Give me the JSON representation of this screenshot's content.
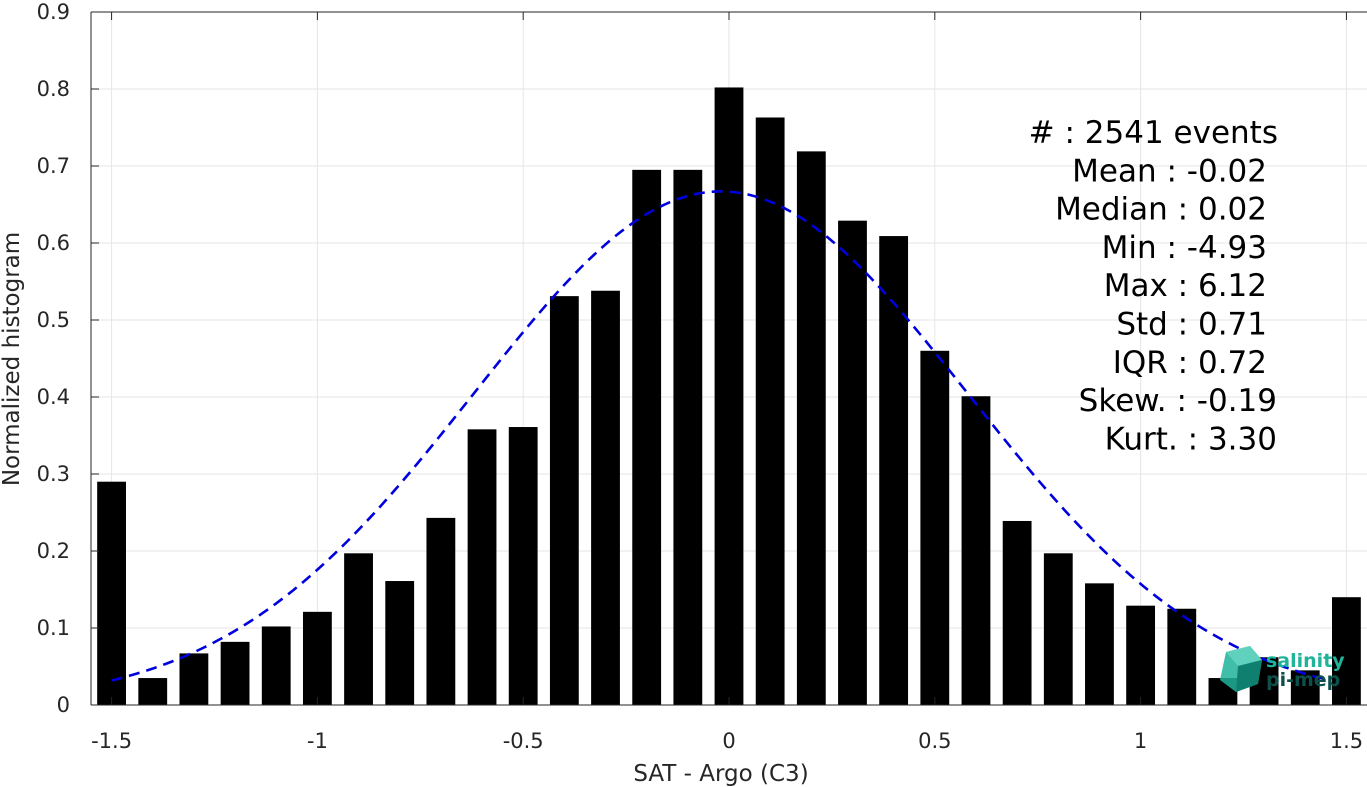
{
  "colors": {
    "bar": "#000000",
    "fit_line": "#0000dd",
    "grid": "#e6e6e6",
    "axis": "#262626",
    "logo_primary": "#1fb39a",
    "logo_dark": "#0d4f4a"
  },
  "logo": {
    "line1": "salinity",
    "line2": "pi-mep",
    "icon": "cube-logo-icon"
  },
  "chart_data": {
    "type": "bar",
    "title": "",
    "xlabel": "SAT - Argo (C3)",
    "ylabel": "Normalized histogram",
    "xlim": [
      -1.55,
      1.55
    ],
    "ylim": [
      0,
      0.9
    ],
    "xticks": [
      -1.5,
      -1,
      -0.5,
      0,
      0.5,
      1,
      1.5
    ],
    "xtick_labels": [
      "-1.5",
      "-1",
      "-0.5",
      "0",
      "0.5",
      "1",
      "1.5"
    ],
    "yticks": [
      0,
      0.1,
      0.2,
      0.3,
      0.4,
      0.5,
      0.6,
      0.7,
      0.8,
      0.9
    ],
    "ytick_labels": [
      "0",
      "0.1",
      "0.2",
      "0.3",
      "0.4",
      "0.5",
      "0.6",
      "0.7",
      "0.8",
      "0.9"
    ],
    "grid": true,
    "bar_width": 0.07,
    "x": [
      -1.5,
      -1.4,
      -1.3,
      -1.2,
      -1.1,
      -1.0,
      -0.9,
      -0.8,
      -0.7,
      -0.6,
      -0.5,
      -0.4,
      -0.3,
      -0.2,
      -0.1,
      0.0,
      0.1,
      0.2,
      0.3,
      0.4,
      0.5,
      0.6,
      0.7,
      0.8,
      0.9,
      1.0,
      1.1,
      1.2,
      1.3,
      1.4,
      1.5
    ],
    "values": [
      0.29,
      0.035,
      0.067,
      0.082,
      0.102,
      0.121,
      0.197,
      0.161,
      0.243,
      0.358,
      0.361,
      0.531,
      0.538,
      0.695,
      0.695,
      0.802,
      0.763,
      0.719,
      0.629,
      0.609,
      0.46,
      0.401,
      0.239,
      0.197,
      0.158,
      0.129,
      0.125,
      0.035,
      0.062,
      0.045,
      0.14
    ],
    "fit": {
      "name": "",
      "style": "dashed",
      "mean": -0.02,
      "std": 0.6,
      "peak": 0.667,
      "x_range": [
        -1.5,
        1.45
      ]
    },
    "annotations": [
      {
        "label": "#  : 2541 events"
      },
      {
        "label": "Mean : -0.02"
      },
      {
        "label": "Median : 0.02"
      },
      {
        "label": "Min : -4.93"
      },
      {
        "label": "Max : 6.12"
      },
      {
        "label": "Std : 0.71"
      },
      {
        "label": "IQR : 0.72"
      },
      {
        "label": "Skew. : -0.19"
      },
      {
        "label": "Kurt. : 3.30"
      }
    ]
  }
}
